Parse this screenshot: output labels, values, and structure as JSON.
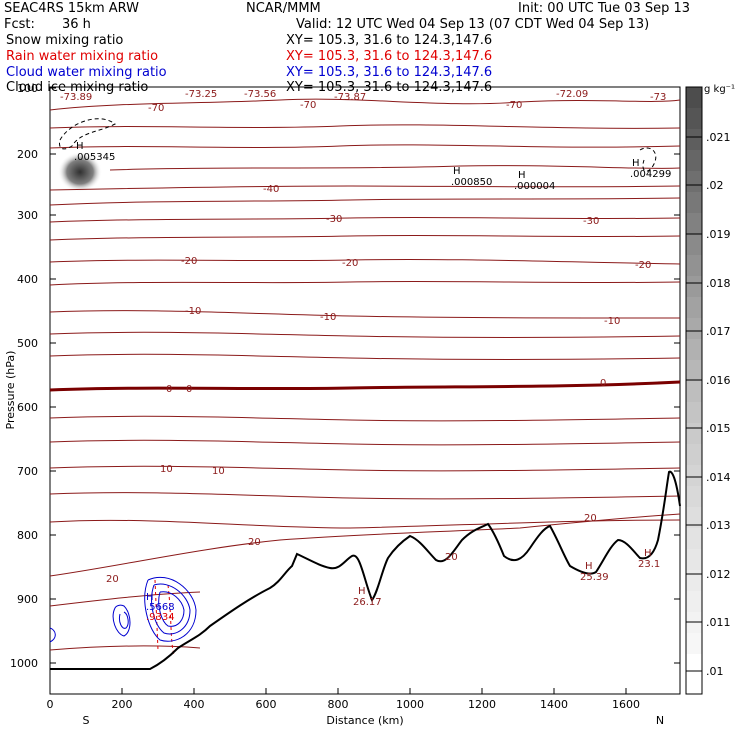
{
  "header": {
    "model": "SEAC4RS 15km ARW",
    "center": "NCAR/MMM",
    "init": "Init: 00 UTC Tue 03 Sep 13",
    "fcst_label": "Fcst:",
    "fcst_value": "36 h",
    "valid": "Valid: 12 UTC Wed 04 Sep 13 (07 CDT Wed 04 Sep 13)"
  },
  "fields": [
    {
      "name": "Snow mixing ratio",
      "xy": "XY= 105.3, 31.6 to 124.3,147.6",
      "color": "#000000"
    },
    {
      "name": "Rain water mixing ratio",
      "xy": "XY= 105.3, 31.6 to 124.3,147.6",
      "color": "#e00000"
    },
    {
      "name": "Cloud water mixing ratio",
      "xy": "XY= 105.3, 31.6 to 124.3,147.6",
      "color": "#0000d0"
    },
    {
      "name": "Cloud ice mixing ratio",
      "xy": "XY= 105.3, 31.6 to 124.3,147.6",
      "color": "#000000"
    }
  ],
  "chart_data": {
    "type": "contour cross-section",
    "xlabel": "Distance (km)",
    "ylabel": "Pressure (hPa)",
    "x_range": [
      0,
      1750
    ],
    "y_range_hpa": [
      100,
      1050
    ],
    "x_ticks": [
      "0",
      "200",
      "400",
      "600",
      "800",
      "1000",
      "1200",
      "1400",
      "1600"
    ],
    "y_ticks": [
      "100",
      "200",
      "300",
      "400",
      "500",
      "600",
      "700",
      "800",
      "900",
      "1000"
    ],
    "x_end_labels": {
      "left": "S",
      "right": "N"
    },
    "temperature_contours_c": [
      {
        "value": -70,
        "pressure": 115,
        "labels": [
          "-70",
          "-70",
          "-70"
        ]
      },
      {
        "value": -40,
        "pressure": 243,
        "labels": [
          "-40"
        ]
      },
      {
        "value": -30,
        "pressure": 300,
        "labels": [
          "-30",
          "-30"
        ]
      },
      {
        "value": -20,
        "pressure": 370,
        "labels": [
          "-20",
          "-20",
          "-20"
        ]
      },
      {
        "value": -10,
        "pressure": 465,
        "labels": [
          "-10",
          "-10",
          "-10"
        ]
      },
      {
        "value": 0,
        "pressure": 578,
        "labels": [
          "0",
          "0",
          "0"
        ]
      },
      {
        "value": 10,
        "pressure": 705,
        "labels": [
          "10",
          "10"
        ]
      },
      {
        "value": 20,
        "pressure": 818,
        "labels": [
          "20",
          "20",
          "20",
          "20"
        ]
      }
    ],
    "top_labels": [
      "-73.89",
      "-73.25",
      "-73.56",
      "-73.87",
      "-72.09",
      "-73"
    ],
    "extrema": [
      {
        "label": "H",
        "value": ".005345"
      },
      {
        "label": "H",
        "value": ".000850"
      },
      {
        "label": "H",
        "value": ".000004"
      },
      {
        "label": "H",
        "value": ".004299"
      },
      {
        "label": "H",
        "value": "26.17"
      },
      {
        "label": "H",
        "value": "25.39"
      },
      {
        "label": "H",
        "value": "23.1"
      },
      {
        "label": "H",
        "value": ".5668"
      },
      {
        "label": "H",
        "value": ".9334"
      }
    ],
    "colorbar": {
      "unit": "g kg⁻¹",
      "ticks": [
        ".021",
        ".02",
        ".019",
        ".018",
        ".017",
        ".016",
        ".015",
        ".014",
        ".013",
        ".012",
        ".011",
        ".01"
      ]
    }
  }
}
